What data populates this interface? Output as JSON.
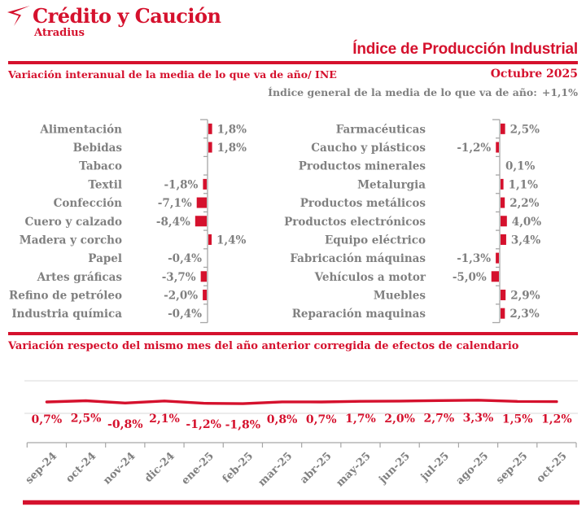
{
  "brand": {
    "logo_text": "Crédito y Caución",
    "logo_sub": "Atradius",
    "accent_red": "#D5112D",
    "text_gray": "#808080",
    "axis_gray": "#A6A6A6",
    "grid_gray": "#D9D9D9"
  },
  "header": {
    "title": "Índice de Producción Industrial",
    "subtitle_left": "Variación interanual de la media de lo que va de año/ INE",
    "date": "Octubre 2025",
    "general_index_label": "Índice general de la media de lo que va de año:",
    "general_index_value": "+1,1%"
  },
  "section2": {
    "title": "Variación respecto del mismo mes del año anterior corregida de efectos de calendario"
  },
  "chart_data": [
    {
      "type": "bar",
      "orientation": "horizontal",
      "title": "Variación interanual de la media de lo que va de año/ INE (columna izquierda)",
      "categories": [
        "Alimentación",
        "Bebidas",
        "Tabaco",
        "Textil",
        "Confección",
        "Cuero y calzado",
        "Madera y corcho",
        "Papel",
        "Artes gráficas",
        "Refino de petróleo",
        "Industria química"
      ],
      "values": [
        1.8,
        1.8,
        null,
        -1.8,
        -7.1,
        -8.4,
        1.4,
        -0.4,
        -3.7,
        -2.0,
        -0.4
      ],
      "labels": [
        "1,8%",
        "1,8%",
        "",
        "-1,8%",
        "-7,1%",
        "-8,4%",
        "1,4%",
        "-0,4%",
        "-3,7%",
        "-2,0%",
        "-0,4%"
      ],
      "xlim": [
        -10,
        10
      ],
      "grid": false,
      "legend": "none"
    },
    {
      "type": "bar",
      "orientation": "horizontal",
      "title": "Variación interanual de la media de lo que va de año/ INE (columna derecha)",
      "categories": [
        "Farmacéuticas",
        "Caucho y plásticos",
        "Productos minerales",
        "Metalurgia",
        "Productos metálicos",
        "Productos electrónicos",
        "Equipo eléctrico",
        "Fabricación máquinas",
        "Vehículos a motor",
        "Muebles",
        "Reparación maquinas"
      ],
      "values": [
        2.5,
        -1.2,
        0.1,
        1.1,
        2.2,
        4.0,
        3.4,
        -1.3,
        -5.0,
        2.9,
        2.3
      ],
      "labels": [
        "2,5%",
        "-1,2%",
        "0,1%",
        "1,1%",
        "2,2%",
        "4,0%",
        "3,4%",
        "-1,3%",
        "-5,0%",
        "2,9%",
        "2,3%"
      ],
      "xlim": [
        -10,
        10
      ],
      "grid": false,
      "legend": "none"
    },
    {
      "type": "line",
      "title": "Variación respecto del mismo mes del año anterior corregida de efectos de calendario",
      "x": [
        "sep-24",
        "oct-24",
        "nov-24",
        "dic-24",
        "ene-25",
        "feb-25",
        "mar-25",
        "abr-25",
        "may-25",
        "jun-25",
        "jul-25",
        "ago-25",
        "sep-25",
        "oct-25"
      ],
      "values": [
        0.7,
        2.5,
        -0.8,
        2.1,
        -1.2,
        -1.8,
        0.8,
        0.7,
        1.7,
        2.0,
        2.7,
        3.3,
        1.5,
        1.2
      ],
      "labels": [
        "0,7%",
        "2,5%",
        "-0,8%",
        "2,1%",
        "-1,2%",
        "-1,8%",
        "0,8%",
        "0,7%",
        "1,7%",
        "2,0%",
        "2,7%",
        "3,3%",
        "1,5%",
        "1,2%"
      ],
      "grid": true,
      "legend": "none"
    }
  ]
}
